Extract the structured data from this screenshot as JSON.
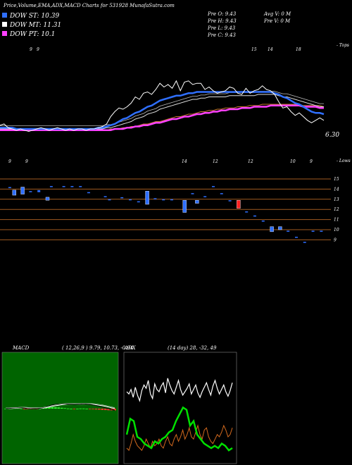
{
  "header": {
    "title": "Price,Volume,EMA,ADX,MACD Charts for 531928",
    "site": "MunafaSutra.com"
  },
  "dow_lines": [
    {
      "label": "DOW ST: 10.39",
      "color": "#2f6fff"
    },
    {
      "label": "DOW MT: 11.31",
      "color": "#ffffff"
    },
    {
      "label": "DOW PT: 10.1",
      "color": "#ff40ff"
    }
  ],
  "stats": {
    "col1": [
      "Pre O: 9.43",
      "Pre H: 9.43",
      "Pre L: 9.43",
      "Pre C: 9.43"
    ],
    "col2": [
      "Avg V: 0 M",
      "Pre V: 0 M"
    ]
  },
  "price_chart": {
    "top_label": "- Tops",
    "top_ticks": [
      "9",
      "9",
      "15",
      "14",
      "18"
    ],
    "current_price": "6.30",
    "close": [
      5.9,
      6.0,
      5.7,
      5.6,
      5.5,
      5.6,
      5.5,
      5.4,
      5.5,
      5.6,
      5.7,
      5.6,
      5.5,
      5.6,
      5.7,
      5.6,
      5.5,
      5.6,
      5.5,
      5.6,
      5.6,
      5.5,
      5.6,
      5.6,
      5.7,
      5.8,
      6.0,
      6.6,
      7.0,
      7.3,
      7.2,
      7.4,
      7.7,
      8.2,
      8.0,
      8.5,
      8.6,
      8.4,
      8.8,
      9.3,
      9.0,
      9.2,
      8.9,
      9.5,
      8.7,
      9.4,
      9.5,
      9.2,
      9.3,
      9.3,
      8.8,
      9.0,
      8.7,
      8.5,
      8.6,
      8.7,
      9.0,
      8.9,
      8.5,
      8.4,
      8.9,
      8.5,
      8.7,
      8.8,
      9.1,
      8.8,
      8.7,
      8.4,
      7.8,
      7.3,
      7.4,
      7.0,
      6.7,
      6.9,
      6.6,
      6.3,
      6.1,
      6.3,
      6.5,
      6.3
    ],
    "ema_blue": [
      5.7,
      5.7,
      5.7,
      5.7,
      5.6,
      5.6,
      5.6,
      5.6,
      5.6,
      5.6,
      5.6,
      5.6,
      5.6,
      5.6,
      5.6,
      5.6,
      5.6,
      5.6,
      5.6,
      5.6,
      5.6,
      5.6,
      5.6,
      5.6,
      5.7,
      5.7,
      5.8,
      5.9,
      6.0,
      6.2,
      6.4,
      6.5,
      6.7,
      6.9,
      7.0,
      7.2,
      7.4,
      7.5,
      7.7,
      7.9,
      8.0,
      8.1,
      8.2,
      8.3,
      8.3,
      8.4,
      8.5,
      8.5,
      8.6,
      8.6,
      8.6,
      8.6,
      8.6,
      8.6,
      8.6,
      8.6,
      8.6,
      8.6,
      8.6,
      8.6,
      8.6,
      8.6,
      8.6,
      8.6,
      8.6,
      8.6,
      8.6,
      8.5,
      8.4,
      8.2,
      8.1,
      7.9,
      7.7,
      7.6,
      7.4,
      7.2,
      7.0,
      6.9,
      6.9,
      6.8
    ],
    "ema_white": [
      5.6,
      5.6,
      5.6,
      5.6,
      5.6,
      5.6,
      5.6,
      5.6,
      5.6,
      5.6,
      5.6,
      5.6,
      5.6,
      5.6,
      5.6,
      5.6,
      5.6,
      5.6,
      5.6,
      5.6,
      5.6,
      5.6,
      5.6,
      5.6,
      5.6,
      5.6,
      5.7,
      5.7,
      5.8,
      5.9,
      6.0,
      6.1,
      6.2,
      6.4,
      6.5,
      6.6,
      6.8,
      6.9,
      7.0,
      7.2,
      7.3,
      7.4,
      7.5,
      7.6,
      7.7,
      7.8,
      7.9,
      8.0,
      8.0,
      8.1,
      8.1,
      8.2,
      8.2,
      8.2,
      8.2,
      8.2,
      8.3,
      8.3,
      8.3,
      8.3,
      8.3,
      8.3,
      8.3,
      8.4,
      8.4,
      8.4,
      8.4,
      8.4,
      8.3,
      8.2,
      8.2,
      8.1,
      8.0,
      7.9,
      7.8,
      7.7,
      7.6,
      7.5,
      7.4,
      7.4
    ],
    "ema_magenta": [
      5.5,
      5.5,
      5.5,
      5.5,
      5.5,
      5.5,
      5.5,
      5.5,
      5.5,
      5.5,
      5.5,
      5.5,
      5.5,
      5.5,
      5.5,
      5.5,
      5.5,
      5.5,
      5.5,
      5.5,
      5.5,
      5.5,
      5.5,
      5.5,
      5.5,
      5.5,
      5.5,
      5.5,
      5.6,
      5.6,
      5.6,
      5.7,
      5.7,
      5.8,
      5.8,
      5.9,
      5.9,
      6.0,
      6.1,
      6.1,
      6.2,
      6.3,
      6.4,
      6.4,
      6.5,
      6.6,
      6.6,
      6.7,
      6.8,
      6.8,
      6.9,
      6.9,
      7.0,
      7.0,
      7.1,
      7.1,
      7.2,
      7.2,
      7.2,
      7.3,
      7.3,
      7.3,
      7.4,
      7.4,
      7.4,
      7.4,
      7.5,
      7.5,
      7.5,
      7.5,
      7.5,
      7.5,
      7.5,
      7.5,
      7.4,
      7.4,
      7.4,
      7.4,
      7.3,
      7.3
    ],
    "ema_brown": [
      5.5,
      5.5,
      5.5,
      5.5,
      5.5,
      5.5,
      5.5,
      5.5,
      5.5,
      5.5,
      5.5,
      5.5,
      5.5,
      5.5,
      5.5,
      5.5,
      5.5,
      5.5,
      5.5,
      5.5,
      5.5,
      5.5,
      5.5,
      5.5,
      5.5,
      5.5,
      5.5,
      5.6,
      5.6,
      5.6,
      5.7,
      5.7,
      5.8,
      5.8,
      5.9,
      6.0,
      6.0,
      6.1,
      6.2,
      6.2,
      6.3,
      6.4,
      6.5,
      6.6,
      6.6,
      6.7,
      6.8,
      6.8,
      6.9,
      7.0,
      7.0,
      7.1,
      7.1,
      7.2,
      7.2,
      7.3,
      7.3,
      7.3,
      7.4,
      7.4,
      7.4,
      7.5,
      7.5,
      7.5,
      7.6,
      7.6,
      7.6,
      7.6,
      7.6,
      7.6,
      7.6,
      7.6,
      7.6,
      7.6,
      7.5,
      7.5,
      7.5,
      7.5,
      7.5,
      7.4
    ]
  },
  "volume_chart": {
    "bottom_label": "- Lows",
    "low_ticks": [
      "9",
      "9",
      "14",
      "12",
      "12",
      "10",
      "9"
    ],
    "axis_ticks": [
      "15",
      "14",
      "13",
      "12",
      "11",
      "10",
      "9"
    ],
    "bars": [
      {
        "i": 1,
        "v": 14.2,
        "h": 0.1,
        "c": "#2f6fff"
      },
      {
        "i": 2,
        "v": 13.9,
        "h": 0.5,
        "c": "#2f6fff"
      },
      {
        "i": 4,
        "v": 14.2,
        "h": 0.7,
        "c": "#2f6fff"
      },
      {
        "i": 6,
        "v": 13.8,
        "h": 0.1,
        "c": "#2f6fff"
      },
      {
        "i": 8,
        "v": 13.9,
        "h": 0.2,
        "c": "#2f6fff"
      },
      {
        "i": 10,
        "v": 13.2,
        "h": 0.3,
        "c": "#2f6fff"
      },
      {
        "i": 11,
        "v": 14.3,
        "h": 0.1,
        "c": "#2f6fff"
      },
      {
        "i": 14,
        "v": 14.3,
        "h": 0.1,
        "c": "#2f6fff"
      },
      {
        "i": 16,
        "v": 14.3,
        "h": 0.1,
        "c": "#2f6fff"
      },
      {
        "i": 18,
        "v": 14.3,
        "h": 0.1,
        "c": "#2f6fff"
      },
      {
        "i": 20,
        "v": 13.7,
        "h": 0.1,
        "c": "#2f6fff"
      },
      {
        "i": 24,
        "v": 13.3,
        "h": 0.1,
        "c": "#2f6fff"
      },
      {
        "i": 25,
        "v": 13.0,
        "h": 0.1,
        "c": "#2f6fff"
      },
      {
        "i": 28,
        "v": 13.2,
        "h": 0.1,
        "c": "#2f6fff"
      },
      {
        "i": 30,
        "v": 13.0,
        "h": 0.1,
        "c": "#2f6fff"
      },
      {
        "i": 32,
        "v": 12.8,
        "h": 0.1,
        "c": "#2f6fff"
      },
      {
        "i": 34,
        "v": 13.8,
        "h": 1.3,
        "c": "#2f6fff"
      },
      {
        "i": 36,
        "v": 13.1,
        "h": 0.1,
        "c": "#2f6fff"
      },
      {
        "i": 38,
        "v": 13.0,
        "h": 0.1,
        "c": "#2f6fff"
      },
      {
        "i": 40,
        "v": 13.0,
        "h": 0.1,
        "c": "#2f6fff"
      },
      {
        "i": 43,
        "v": 12.9,
        "h": 1.2,
        "c": "#2f6fff"
      },
      {
        "i": 45,
        "v": 13.6,
        "h": 0.1,
        "c": "#2f6fff"
      },
      {
        "i": 46,
        "v": 12.9,
        "h": 0.3,
        "c": "#2f6fff"
      },
      {
        "i": 48,
        "v": 13.3,
        "h": 0.1,
        "c": "#2f6fff"
      },
      {
        "i": 50,
        "v": 14.3,
        "h": 0.1,
        "c": "#2f6fff"
      },
      {
        "i": 52,
        "v": 13.6,
        "h": 0.1,
        "c": "#2f6fff"
      },
      {
        "i": 54,
        "v": 12.9,
        "h": 0.1,
        "c": "#2f6fff"
      },
      {
        "i": 56,
        "v": 12.9,
        "h": 0.8,
        "c": "#ff2020"
      },
      {
        "i": 58,
        "v": 11.8,
        "h": 0.1,
        "c": "#2f6fff"
      },
      {
        "i": 60,
        "v": 11.4,
        "h": 0.1,
        "c": "#2f6fff"
      },
      {
        "i": 62,
        "v": 10.9,
        "h": 0.1,
        "c": "#2f6fff"
      },
      {
        "i": 64,
        "v": 10.3,
        "h": 0.5,
        "c": "#2f6fff"
      },
      {
        "i": 66,
        "v": 10.3,
        "h": 0.3,
        "c": "#2f6fff"
      },
      {
        "i": 68,
        "v": 9.9,
        "h": 0.1,
        "c": "#2f6fff"
      },
      {
        "i": 70,
        "v": 9.3,
        "h": 0.1,
        "c": "#2f6fff"
      },
      {
        "i": 72,
        "v": 8.8,
        "h": 0.1,
        "c": "#2f6fff"
      },
      {
        "i": 74,
        "v": 9.9,
        "h": 0.1,
        "c": "#2f6fff"
      },
      {
        "i": 76,
        "v": 9.9,
        "h": 0.1,
        "c": "#2f6fff"
      }
    ]
  },
  "macd": {
    "title": "MACD",
    "params": "( 12,26,9 ) 9.79, 10.73, -0.94",
    "line": [
      0,
      0.1,
      0.3,
      0.5,
      0.6,
      0.5,
      0.3,
      0.1,
      0,
      0,
      0,
      0.2,
      0.6,
      1.2,
      1.8,
      2.3,
      2.6,
      2.8,
      2.9,
      2.9,
      2.8,
      2.7,
      2.6,
      2.7,
      2.8,
      2.9,
      2.8,
      2.6,
      2.3,
      1.9,
      1.5,
      1.0,
      0.5,
      0,
      -0.6,
      -1.0
    ],
    "signal": [
      0,
      0,
      0.1,
      0.2,
      0.3,
      0.4,
      0.4,
      0.3,
      0.2,
      0.1,
      0.1,
      0.1,
      0.3,
      0.6,
      1.0,
      1.4,
      1.8,
      2.1,
      2.4,
      2.6,
      2.7,
      2.7,
      2.7,
      2.7,
      2.7,
      2.8,
      2.8,
      2.7,
      2.6,
      2.4,
      2.1,
      1.8,
      1.4,
      1.0,
      0.5,
      0.1
    ],
    "hist": [
      0,
      0.1,
      0.2,
      0.3,
      0.3,
      0.1,
      -0.1,
      -0.2,
      -0.2,
      -0.1,
      -0.1,
      0.1,
      0.3,
      0.6,
      0.8,
      0.9,
      0.8,
      0.7,
      0.5,
      0.3,
      0.1,
      0,
      -0.1,
      0,
      0.1,
      0.1,
      0,
      -0.1,
      -0.3,
      -0.5,
      -0.6,
      -0.8,
      -0.9,
      -1.0,
      -1.1,
      -1.1
    ]
  },
  "adx": {
    "title": "ADX",
    "params": "(14 day) 28, -32, 49",
    "white": [
      60,
      58,
      62,
      55,
      64,
      57,
      52,
      61,
      66,
      63,
      70,
      58,
      54,
      67,
      62,
      60,
      65,
      68,
      59,
      72,
      66,
      61,
      58,
      64,
      70,
      62,
      57,
      60,
      63,
      67,
      58,
      62,
      66,
      59,
      55,
      60,
      64,
      68,
      62,
      57,
      65,
      70,
      63,
      58,
      62,
      66,
      60,
      56,
      61,
      68
    ],
    "green": [
      22,
      36,
      34,
      20,
      18,
      14,
      12,
      10,
      16,
      14,
      18,
      20,
      24,
      26,
      34,
      40,
      46,
      44,
      30,
      34,
      22,
      18,
      14,
      12,
      10,
      12,
      10,
      14,
      12,
      8,
      10
    ],
    "orange": [
      10,
      8,
      14,
      22,
      16,
      12,
      10,
      8,
      12,
      18,
      14,
      10,
      16,
      12,
      14,
      18,
      12,
      10,
      16,
      20,
      14,
      12,
      18,
      22,
      16,
      20,
      26,
      18,
      22,
      28,
      20,
      18,
      24,
      30,
      22,
      18,
      26,
      28,
      20,
      16,
      14,
      18,
      22,
      20,
      24,
      30,
      26,
      20,
      22,
      28
    ]
  }
}
